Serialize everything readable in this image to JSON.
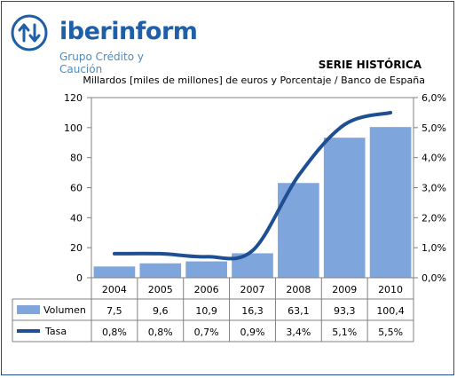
{
  "brand": {
    "name": "iberinform",
    "tagline": "Grupo Crédito y Caución"
  },
  "chart_data": {
    "type": "bar+line",
    "title": "SERIE HISTÓRICA",
    "subtitle": "Millardos [miles de millones] de euros y Porcentaje / Banco de España",
    "categories": [
      "2004",
      "2005",
      "2006",
      "2007",
      "2008",
      "2009",
      "2010"
    ],
    "left_axis": {
      "ylim": [
        0,
        120
      ],
      "ticks": [
        0,
        20,
        40,
        60,
        80,
        100,
        120
      ]
    },
    "right_axis": {
      "ylim": [
        0,
        6
      ],
      "ticks": [
        "0,0%",
        "1,0%",
        "2,0%",
        "3,0%",
        "4,0%",
        "5,0%",
        "6,0%"
      ]
    },
    "series": [
      {
        "name": "Volumen",
        "type": "bar",
        "axis": "left",
        "values": [
          7.5,
          9.6,
          10.9,
          16.3,
          63.1,
          93.3,
          100.4
        ],
        "labels": [
          "7,5",
          "9,6",
          "10,9",
          "16,3",
          "63,1",
          "93,3",
          "100,4"
        ],
        "color": "#7fa6dc"
      },
      {
        "name": "Tasa",
        "type": "line",
        "axis": "right",
        "values": [
          0.8,
          0.8,
          0.7,
          0.9,
          3.4,
          5.1,
          5.5
        ],
        "labels": [
          "0,8%",
          "0,8%",
          "0,7%",
          "0,9%",
          "3,4%",
          "5,1%",
          "5,5%"
        ],
        "color": "#1f4e93"
      }
    ],
    "grid": false,
    "legend": "data-table"
  }
}
